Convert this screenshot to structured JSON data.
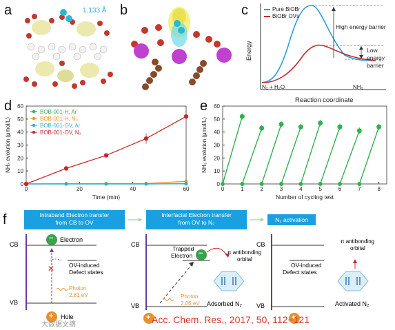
{
  "panels": {
    "a": {
      "letter": "a",
      "bond_length": "1.133 Å"
    },
    "b": {
      "letter": "b"
    },
    "c": {
      "letter": "c",
      "legend": [
        "Pure BiOBr",
        "BiOBr OVs"
      ],
      "ylabel": "Energy",
      "xlabel": "Reaction coordinate",
      "start": "N₂ + H₂O",
      "end": "NH₃",
      "high_barrier": "High energy barrier",
      "low_barrier_1": "Low",
      "low_barrier_2": "energy",
      "low_barrier_3": "barrier",
      "colors": {
        "pure": "#2a9ee0",
        "ovs": "#c8282e"
      }
    },
    "d": {
      "letter": "d"
    },
    "e": {
      "letter": "e"
    },
    "f": {
      "letter": "f",
      "box1": [
        "Intraband Electron transfer",
        "from CB to OV"
      ],
      "box2": [
        "Interfacial Electron transfer",
        "from OV to N₂"
      ],
      "box3": "N₂ activation",
      "cb": "CB",
      "vb": "VB",
      "electron": "Electron",
      "ov_states": [
        "OV-induced",
        "Defect states"
      ],
      "photon1": [
        "Photon",
        "2.81 eV"
      ],
      "hole": "Hole",
      "trapped": [
        "Trapped",
        "Electron"
      ],
      "pi_orbital": [
        "π antibonding",
        "orbital"
      ],
      "photon2": [
        "Photon",
        "2.06 eV"
      ],
      "adsorbed": "Adsorbed N₂",
      "activated": "Activated N₂",
      "minus": "−",
      "plus": "+"
    }
  },
  "chart_data": [
    {
      "type": "line",
      "ylabel": "NH₃ evolution (μmol/L)",
      "xlabel": "Time (min)",
      "x": [
        0,
        15,
        30,
        45,
        60
      ],
      "xlim": [
        0,
        60
      ],
      "ylim": [
        0,
        60
      ],
      "xticks": [
        "0",
        "20",
        "40",
        "60"
      ],
      "yticks": [
        "0",
        "10",
        "20",
        "30",
        "40",
        "50",
        "60"
      ],
      "legend_position": "top-left",
      "series": [
        {
          "name": "BOB-001-H, Ar",
          "color": "#2eb34f",
          "values": [
            0,
            0,
            0,
            0,
            0.2
          ]
        },
        {
          "name": "BOB-001-H, N₂",
          "color": "#e8912b",
          "values": [
            0,
            0.2,
            0.3,
            0.4,
            2.0
          ]
        },
        {
          "name": "BOB-001-OV, Ar",
          "color": "#2ab0c8",
          "values": [
            0,
            0,
            0,
            0,
            0.1
          ]
        },
        {
          "name": "BOB-001-OV, N₂",
          "color": "#c8282e",
          "values": [
            0,
            12,
            22,
            35,
            52
          ]
        }
      ]
    },
    {
      "type": "line",
      "ylabel": "NH₃ evolution (μmol/L)",
      "xlabel": "Number of cycling test",
      "xlim": [
        0,
        8.4
      ],
      "ylim": [
        0,
        60
      ],
      "xticks": [
        "0",
        "1",
        "2",
        "3",
        "4",
        "5",
        "6",
        "7",
        "8"
      ],
      "yticks": [
        "0",
        "10",
        "20",
        "30",
        "40",
        "50",
        "60"
      ],
      "color": "#2eb34f",
      "cycles": [
        {
          "start": 0,
          "end": 52
        },
        {
          "start": 0,
          "end": 43
        },
        {
          "start": 0,
          "end": 46
        },
        {
          "start": 0,
          "end": 44
        },
        {
          "start": 0,
          "end": 47
        },
        {
          "start": 0,
          "end": 44
        },
        {
          "start": 0,
          "end": 41
        },
        {
          "start": 0,
          "end": 44
        }
      ]
    }
  ],
  "citation": "Acc. Chem. Res., 2017, 50, 112−121",
  "watermark": "大数据文摘"
}
